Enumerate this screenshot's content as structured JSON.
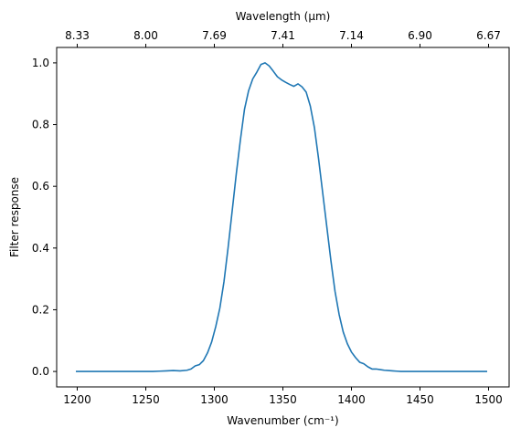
{
  "chart_data": {
    "type": "line",
    "xlabel": "Wavenumber (cm⁻¹)",
    "ylabel": "Filter response",
    "top_xlabel": "Wavelength (μm)",
    "xlim": [
      1185,
      1515
    ],
    "ylim": [
      -0.05,
      1.05
    ],
    "x_ticks": [
      1200,
      1250,
      1300,
      1350,
      1400,
      1450,
      1500
    ],
    "x_tick_labels": [
      "1200",
      "1250",
      "1300",
      "1350",
      "1400",
      "1450",
      "1500"
    ],
    "y_ticks": [
      0.0,
      0.2,
      0.4,
      0.6,
      0.8,
      1.0
    ],
    "y_tick_labels": [
      "0.0",
      "0.2",
      "0.4",
      "0.6",
      "0.8",
      "1.0"
    ],
    "top_ticks": [
      1200,
      1250,
      1300,
      1350,
      1400,
      1450,
      1500
    ],
    "top_tick_labels": [
      "8.33",
      "8.00",
      "7.69",
      "7.41",
      "7.14",
      "6.90",
      "6.67"
    ],
    "grid": false,
    "series": [
      {
        "color": "#1f77b4",
        "x": [
          1199,
          1210,
          1220,
          1230,
          1240,
          1250,
          1255,
          1260,
          1265,
          1270,
          1275,
          1280,
          1283,
          1286,
          1289,
          1292,
          1295,
          1298,
          1301,
          1304,
          1307,
          1310,
          1313,
          1316,
          1319,
          1322,
          1325,
          1328,
          1331,
          1334,
          1337,
          1340,
          1343,
          1346,
          1349,
          1352,
          1355,
          1358,
          1361,
          1364,
          1367,
          1370,
          1373,
          1376,
          1379,
          1382,
          1385,
          1388,
          1391,
          1394,
          1397,
          1400,
          1403,
          1406,
          1409,
          1412,
          1415,
          1418,
          1421,
          1424,
          1427,
          1430,
          1433,
          1436,
          1438,
          1440,
          1445,
          1450,
          1460,
          1470,
          1480,
          1490,
          1499
        ],
        "y": [
          0.0,
          0.0,
          0.0,
          0.0,
          0.0,
          0.0,
          0.0,
          0.001,
          0.002,
          0.003,
          0.002,
          0.004,
          0.008,
          0.018,
          0.022,
          0.035,
          0.06,
          0.095,
          0.145,
          0.205,
          0.29,
          0.4,
          0.52,
          0.64,
          0.75,
          0.85,
          0.91,
          0.948,
          0.97,
          0.995,
          1.0,
          0.99,
          0.973,
          0.955,
          0.945,
          0.937,
          0.93,
          0.924,
          0.932,
          0.922,
          0.905,
          0.86,
          0.79,
          0.69,
          0.58,
          0.47,
          0.36,
          0.26,
          0.185,
          0.128,
          0.09,
          0.063,
          0.045,
          0.03,
          0.025,
          0.015,
          0.008,
          0.008,
          0.006,
          0.004,
          0.003,
          0.002,
          0.001,
          0.0,
          0.0,
          0.0,
          0.0,
          0.0,
          0.0,
          0.0,
          0.0,
          0.0,
          0.0
        ]
      }
    ]
  }
}
